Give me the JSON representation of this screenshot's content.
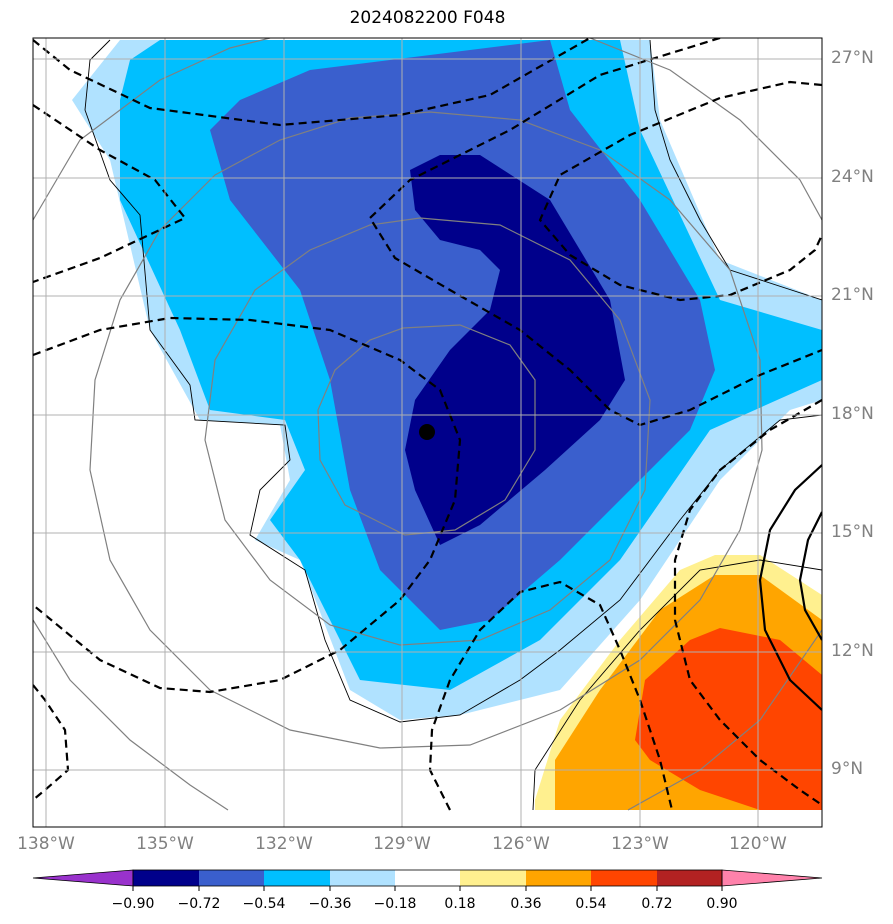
{
  "title": "2024082200 F048",
  "map": {
    "lat_labels": [
      "27°N",
      "24°N",
      "21°N",
      "18°N",
      "15°N",
      "12°N",
      "9°N"
    ],
    "lon_labels": [
      "138°W",
      "135°W",
      "132°W",
      "129°W",
      "126°W",
      "123°W",
      "120°W"
    ],
    "storm_center_marker": "filled-circle"
  },
  "colorbar": {
    "ticks": [
      "−0.90",
      "−0.72",
      "−0.54",
      "−0.36",
      "−0.18",
      "0.18",
      "0.36",
      "0.54",
      "0.72",
      "0.90"
    ],
    "colors": [
      "#9932cc",
      "#00008b",
      "#3a5fcd",
      "#00bfff",
      "#b0e2ff",
      "#ffffff",
      "#fff08f",
      "#ffa500",
      "#ff4500",
      "#b22222",
      "#ff82ab"
    ],
    "extend": "both"
  }
}
